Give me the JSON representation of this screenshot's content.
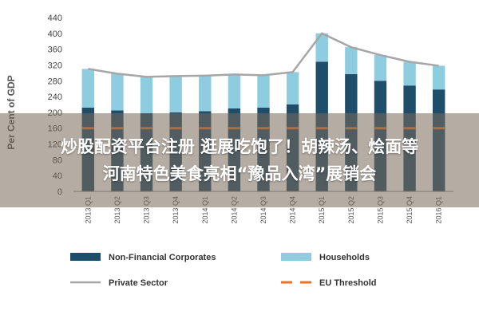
{
  "chart_data": {
    "type": "bar",
    "ylabel": "Per Cent of GDP",
    "ylim": [
      0,
      440
    ],
    "yticks": [
      0,
      40,
      80,
      120,
      160,
      200,
      240,
      280,
      320,
      360,
      400,
      440
    ],
    "grid": false,
    "legend_position": "bottom",
    "categories": [
      "2013 Q1",
      "2013 Q2",
      "2013 Q3",
      "2013 Q4",
      "2014 Q1",
      "2014 Q2",
      "2014 Q3",
      "2014 Q4",
      "2015 Q1",
      "2015 Q2",
      "2015 Q3",
      "2015 Q4",
      "2016 Q1"
    ],
    "series": [
      {
        "name": "Non-Financial Corporates",
        "type": "bar",
        "stack": "total",
        "color": "#1f4e6b",
        "values": [
          212,
          205,
          198,
          200,
          203,
          210,
          212,
          220,
          328,
          297,
          280,
          268,
          258
        ]
      },
      {
        "name": "Households",
        "type": "bar",
        "stack": "total",
        "color": "#8ecde0",
        "values": [
          98,
          93,
          92,
          92,
          90,
          86,
          82,
          82,
          72,
          68,
          65,
          60,
          60
        ]
      },
      {
        "name": "Private Sector",
        "type": "line",
        "color": "#a6a6a6",
        "values": [
          310,
          298,
          290,
          292,
          293,
          296,
          294,
          302,
          400,
          365,
          345,
          328,
          318
        ]
      },
      {
        "name": "EU Threshold",
        "type": "line",
        "dash": true,
        "color": "#e8742c",
        "values": [
          160,
          160,
          160,
          160,
          160,
          160,
          160,
          160,
          160,
          160,
          160,
          160,
          160
        ]
      }
    ]
  },
  "overlay": {
    "line1": "炒股配资平台注册 逛展吃饱了！胡辣汤、烩面等",
    "line2": "河南特色美食亮相“豫品入湾”展销会"
  }
}
